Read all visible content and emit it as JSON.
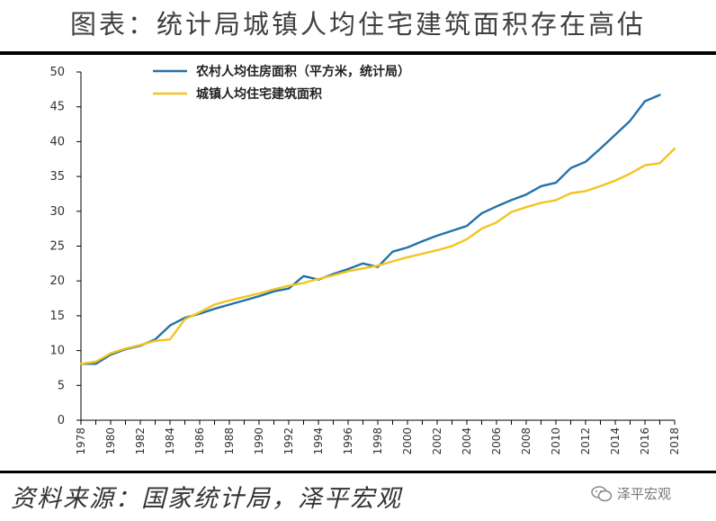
{
  "header": {
    "title": "图表：统计局城镇人均住宅建筑面积存在高估"
  },
  "footer": {
    "source": "资料来源：国家统计局，泽平宏观",
    "watermark": "泽平宏观"
  },
  "colors": {
    "rural": "#2472A8",
    "urban": "#F2C41F"
  },
  "chart_data": {
    "type": "line",
    "title": "",
    "xlabel": "",
    "ylabel": "",
    "ylim": [
      0,
      50
    ],
    "yticks": [
      0,
      5,
      10,
      15,
      20,
      25,
      30,
      35,
      40,
      45,
      50
    ],
    "xlim": [
      1978,
      2018
    ],
    "xticks": [
      1978,
      1980,
      1982,
      1984,
      1986,
      1988,
      1990,
      1992,
      1994,
      1996,
      1998,
      2000,
      2002,
      2004,
      2006,
      2008,
      2010,
      2012,
      2014,
      2016,
      2018
    ],
    "legend_position": "top-left",
    "grid": false,
    "series": [
      {
        "name": "农村人均住房面积（平方米，统计局）",
        "color": "#2472A8",
        "x": [
          1978,
          1979,
          1980,
          1981,
          1982,
          1983,
          1984,
          1985,
          1986,
          1987,
          1988,
          1989,
          1990,
          1991,
          1992,
          1993,
          1994,
          1995,
          1996,
          1997,
          1998,
          1999,
          2000,
          2001,
          2002,
          2003,
          2004,
          2005,
          2006,
          2007,
          2008,
          2009,
          2010,
          2011,
          2012,
          2013,
          2014,
          2015,
          2016,
          2017
        ],
        "values": [
          8.1,
          8.1,
          9.4,
          10.2,
          10.7,
          11.6,
          13.6,
          14.7,
          15.3,
          16.0,
          16.6,
          17.2,
          17.8,
          18.5,
          18.9,
          20.7,
          20.2,
          21.0,
          21.7,
          22.5,
          22.0,
          24.2,
          24.8,
          25.7,
          26.5,
          27.2,
          27.9,
          29.7,
          30.7,
          31.6,
          32.4,
          33.6,
          34.1,
          36.2,
          37.1,
          39.0,
          41.0,
          43.0,
          45.8,
          46.7
        ]
      },
      {
        "name": "城镇人均住宅建筑面积",
        "color": "#F2C41F",
        "x": [
          1978,
          1979,
          1980,
          1981,
          1982,
          1983,
          1984,
          1985,
          1986,
          1987,
          1988,
          1989,
          1990,
          1991,
          1992,
          1993,
          1994,
          1995,
          1996,
          1997,
          1998,
          1999,
          2000,
          2001,
          2002,
          2003,
          2004,
          2005,
          2006,
          2007,
          2008,
          2009,
          2010,
          2011,
          2012,
          2013,
          2014,
          2015,
          2016,
          2017,
          2018
        ],
        "values": [
          8.1,
          8.4,
          9.6,
          10.3,
          10.8,
          11.4,
          11.6,
          14.5,
          15.5,
          16.6,
          17.2,
          17.7,
          18.2,
          18.8,
          19.3,
          19.7,
          20.3,
          20.8,
          21.4,
          21.8,
          22.2,
          22.8,
          23.4,
          23.9,
          24.4,
          25.0,
          26.0,
          27.5,
          28.4,
          29.9,
          30.6,
          31.2,
          31.6,
          32.6,
          32.9,
          33.6,
          34.4,
          35.4,
          36.6,
          36.9,
          39.0
        ]
      }
    ]
  }
}
